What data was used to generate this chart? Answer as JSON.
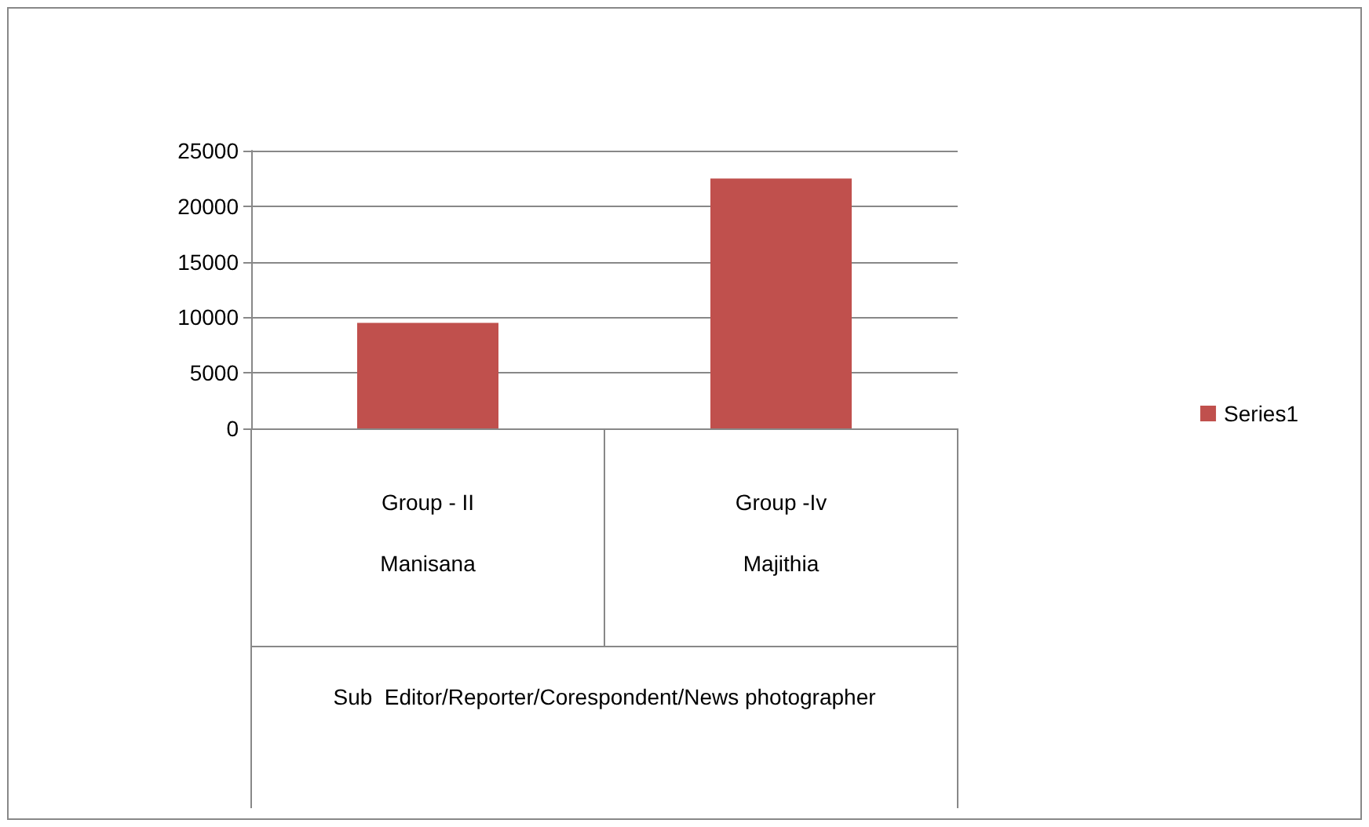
{
  "chart_data": {
    "type": "bar",
    "categories": [
      "Group - II",
      "Group -Iv"
    ],
    "series": [
      {
        "name": "Series1",
        "color": "#c0504d",
        "values": [
          9500,
          22500
        ]
      }
    ],
    "ylim": [
      0,
      25000
    ],
    "yticks": [
      0,
      5000,
      10000,
      15000,
      20000,
      25000
    ],
    "grid": "y",
    "legend": "right",
    "annotations": [
      "Manisana",
      "Majithia",
      "Sub  Editor/Reporter/Corespondent/News photographer"
    ]
  }
}
